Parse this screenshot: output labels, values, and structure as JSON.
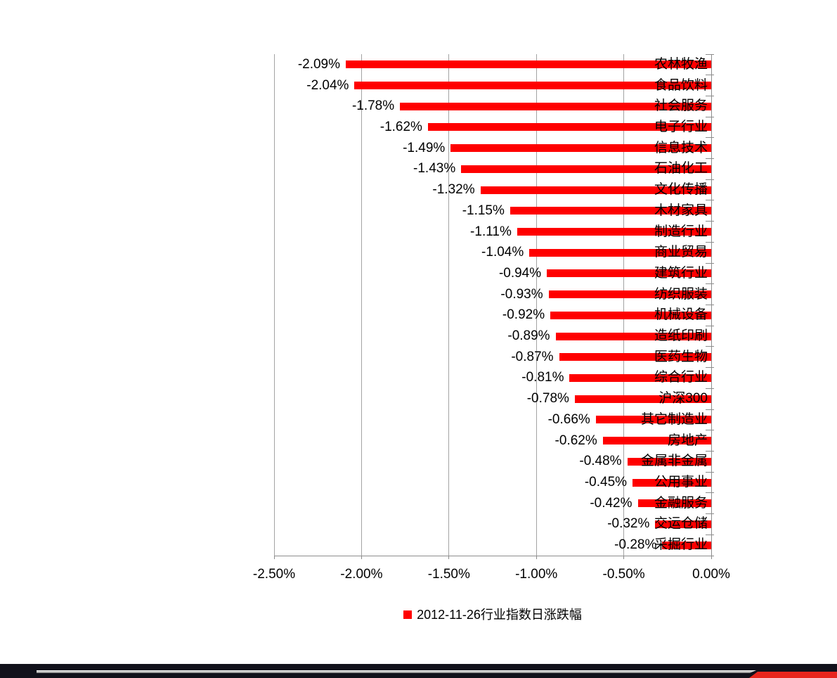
{
  "chart_data": {
    "type": "bar",
    "orientation": "horizontal",
    "title": "",
    "xlabel": "",
    "ylabel": "",
    "xlim": [
      -2.5,
      0
    ],
    "grid": true,
    "bar_color": "#ff0000",
    "legend": "2012-11-26行业指数日涨跌幅",
    "legend_position": "bottom",
    "legend_marker_color": "#ff0000",
    "x_ticks": [
      {
        "value": -2.5,
        "label": "-2.50%"
      },
      {
        "value": -2.0,
        "label": "-2.00%"
      },
      {
        "value": -1.5,
        "label": "-1.50%"
      },
      {
        "value": -1.0,
        "label": "-1.00%"
      },
      {
        "value": -0.5,
        "label": "-0.50%"
      },
      {
        "value": 0.0,
        "label": "0.00%"
      }
    ],
    "rows": [
      {
        "category": "农林牧渔",
        "value": -2.09,
        "label": "-2.09%"
      },
      {
        "category": "食品饮料",
        "value": -2.04,
        "label": "-2.04%"
      },
      {
        "category": "社会服务",
        "value": -1.78,
        "label": "-1.78%"
      },
      {
        "category": "电子行业",
        "value": -1.62,
        "label": "-1.62%"
      },
      {
        "category": "信息技术",
        "value": -1.49,
        "label": "-1.49%"
      },
      {
        "category": "石油化工",
        "value": -1.43,
        "label": "-1.43%"
      },
      {
        "category": "文化传播",
        "value": -1.32,
        "label": "-1.32%"
      },
      {
        "category": "木材家具",
        "value": -1.15,
        "label": "-1.15%"
      },
      {
        "category": "制造行业",
        "value": -1.11,
        "label": "-1.11%"
      },
      {
        "category": "商业贸易",
        "value": -1.04,
        "label": "-1.04%"
      },
      {
        "category": "建筑行业",
        "value": -0.94,
        "label": "-0.94%"
      },
      {
        "category": "纺织服装",
        "value": -0.93,
        "label": "-0.93%"
      },
      {
        "category": "机械设备",
        "value": -0.92,
        "label": "-0.92%"
      },
      {
        "category": "造纸印刷",
        "value": -0.89,
        "label": "-0.89%"
      },
      {
        "category": "医药生物",
        "value": -0.87,
        "label": "-0.87%"
      },
      {
        "category": "综合行业",
        "value": -0.81,
        "label": "-0.81%"
      },
      {
        "category": "沪深300",
        "value": -0.78,
        "label": "-0.78%"
      },
      {
        "category": "其它制造业",
        "value": -0.66,
        "label": "-0.66%"
      },
      {
        "category": "房地产",
        "value": -0.62,
        "label": "-0.62%"
      },
      {
        "category": "金属非金属",
        "value": -0.48,
        "label": "-0.48%"
      },
      {
        "category": "公用事业",
        "value": -0.45,
        "label": "-0.45%"
      },
      {
        "category": "金融服务",
        "value": -0.42,
        "label": "-0.42%"
      },
      {
        "category": "交运仓储",
        "value": -0.32,
        "label": "-0.32%"
      },
      {
        "category": "采掘行业",
        "value": -0.28,
        "label": "-0.28%"
      }
    ]
  },
  "footer": {
    "bar_color": "#11111b",
    "silver_line_color": "#c0c0c0",
    "accent_color": "#e8251d"
  }
}
